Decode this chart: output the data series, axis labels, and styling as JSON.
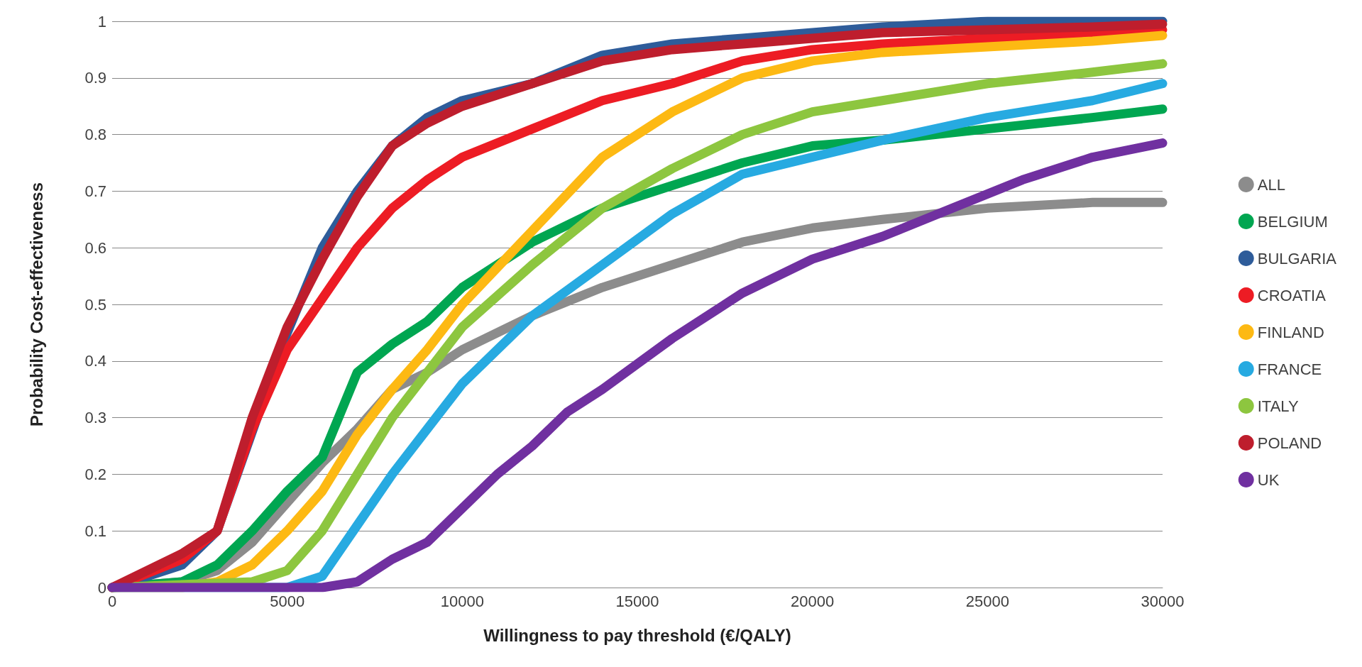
{
  "chart_data": {
    "type": "line",
    "xlabel": "Willingness to pay threshold (€/QALY)",
    "ylabel": "Probability Cost-effectiveness",
    "xlim": [
      0,
      30000
    ],
    "xticks": [
      0,
      5000,
      10000,
      15000,
      20000,
      25000,
      30000
    ],
    "ylim": [
      0,
      1
    ],
    "yticks": [
      0,
      0.1,
      0.2,
      0.3,
      0.4,
      0.5,
      0.6,
      0.7,
      0.8,
      0.9,
      1
    ],
    "grid": "y",
    "legend": "right",
    "marker": "none",
    "line_style": "solid",
    "series": [
      {
        "name": "ALL",
        "color": "#8c8c8c",
        "x": [
          0,
          2000,
          3000,
          4000,
          5000,
          6000,
          7000,
          8000,
          9000,
          10000,
          12000,
          14000,
          16000,
          18000,
          20000,
          22000,
          25000,
          28000,
          30000
        ],
        "values": [
          0,
          0.01,
          0.03,
          0.08,
          0.15,
          0.22,
          0.28,
          0.35,
          0.38,
          0.42,
          0.48,
          0.53,
          0.57,
          0.61,
          0.635,
          0.65,
          0.67,
          0.68,
          0.68
        ]
      },
      {
        "name": "BELGIUM",
        "color": "#00a651",
        "x": [
          0,
          2000,
          3000,
          4000,
          5000,
          6000,
          7000,
          8000,
          9000,
          10000,
          12000,
          14000,
          16000,
          18000,
          20000,
          22000,
          25000,
          28000,
          30000
        ],
        "values": [
          0,
          0.01,
          0.04,
          0.1,
          0.17,
          0.23,
          0.38,
          0.43,
          0.47,
          0.53,
          0.61,
          0.67,
          0.71,
          0.75,
          0.78,
          0.79,
          0.81,
          0.83,
          0.845
        ]
      },
      {
        "name": "BULGARIA",
        "color": "#2e5c9a",
        "x": [
          0,
          2000,
          3000,
          4000,
          5000,
          6000,
          7000,
          8000,
          9000,
          10000,
          12000,
          14000,
          16000,
          18000,
          20000,
          22000,
          25000,
          28000,
          30000
        ],
        "values": [
          0,
          0.04,
          0.1,
          null,
          0.45,
          0.6,
          0.7,
          0.78,
          0.83,
          0.86,
          0.89,
          0.94,
          0.96,
          0.97,
          0.98,
          0.99,
          1,
          1,
          1
        ]
      },
      {
        "name": "CROATIA",
        "color": "#ed1c24",
        "x": [
          0,
          2000,
          3000,
          4000,
          5000,
          6000,
          7000,
          8000,
          9000,
          10000,
          12000,
          14000,
          16000,
          18000,
          20000,
          22000,
          25000,
          28000,
          30000
        ],
        "values": [
          0,
          0.05,
          0.1,
          0.28,
          0.42,
          0.51,
          0.6,
          0.67,
          0.72,
          0.76,
          0.81,
          0.86,
          0.89,
          0.93,
          0.95,
          0.96,
          0.97,
          0.98,
          0.985
        ]
      },
      {
        "name": "FINLAND",
        "color": "#fdb913",
        "x": [
          0,
          2000,
          3000,
          4000,
          5000,
          6000,
          7000,
          8000,
          9000,
          10000,
          12000,
          14000,
          16000,
          18000,
          20000,
          22000,
          25000,
          28000,
          30000
        ],
        "values": [
          0,
          0,
          0.01,
          0.04,
          0.1,
          0.17,
          0.27,
          0.35,
          0.42,
          0.5,
          0.63,
          0.76,
          0.84,
          0.9,
          0.93,
          0.945,
          0.955,
          0.965,
          0.975
        ]
      },
      {
        "name": "FRANCE",
        "color": "#27aae1",
        "x": [
          0,
          5000,
          6000,
          7000,
          8000,
          9000,
          10000,
          12000,
          14000,
          16000,
          18000,
          20000,
          22000,
          25000,
          28000,
          30000
        ],
        "values": [
          0,
          0,
          0.02,
          0.11,
          0.2,
          0.28,
          0.36,
          0.48,
          0.57,
          0.66,
          0.73,
          0.76,
          0.79,
          0.83,
          0.86,
          0.89
        ]
      },
      {
        "name": "ITALY",
        "color": "#8dc63f",
        "x": [
          0,
          4000,
          5000,
          6000,
          7000,
          8000,
          9000,
          10000,
          12000,
          14000,
          16000,
          18000,
          20000,
          22000,
          25000,
          28000,
          30000
        ],
        "values": [
          0,
          0.01,
          0.03,
          0.1,
          0.2,
          0.3,
          0.38,
          0.46,
          0.57,
          0.67,
          0.74,
          0.8,
          0.84,
          0.86,
          0.89,
          0.91,
          0.925
        ]
      },
      {
        "name": "POLAND",
        "color": "#be1e2d",
        "x": [
          0,
          2000,
          3000,
          4000,
          5000,
          6000,
          7000,
          8000,
          9000,
          10000,
          12000,
          14000,
          16000,
          18000,
          20000,
          22000,
          25000,
          28000,
          30000
        ],
        "values": [
          0,
          0.06,
          0.1,
          0.3,
          0.46,
          0.58,
          0.69,
          0.78,
          0.82,
          0.85,
          0.89,
          0.93,
          0.95,
          0.96,
          0.97,
          0.98,
          0.985,
          0.99,
          0.995
        ]
      },
      {
        "name": "UK",
        "color": "#7030a0",
        "x": [
          0,
          6000,
          7000,
          8000,
          9000,
          10000,
          11000,
          12000,
          13000,
          14000,
          16000,
          18000,
          20000,
          22000,
          24000,
          26000,
          28000,
          30000
        ],
        "values": [
          0,
          0,
          0.01,
          0.05,
          0.08,
          0.14,
          0.2,
          0.25,
          0.31,
          0.35,
          0.44,
          0.52,
          0.58,
          0.62,
          0.67,
          0.72,
          0.76,
          0.785
        ]
      }
    ]
  }
}
